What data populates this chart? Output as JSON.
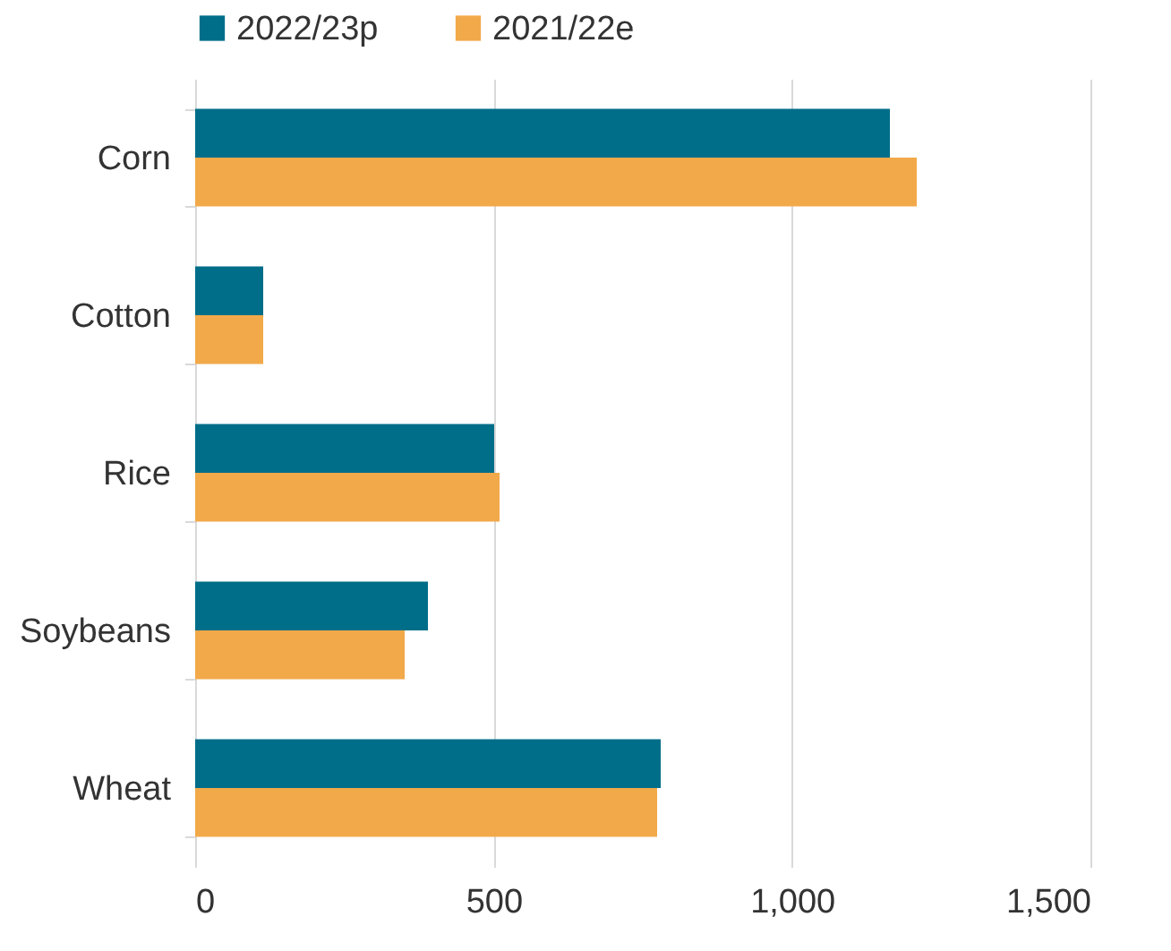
{
  "chart_data": {
    "type": "bar",
    "orientation": "horizontal",
    "categories": [
      "Corn",
      "Cotton",
      "Rice",
      "Soybeans",
      "Wheat"
    ],
    "series": [
      {
        "name": "2022/23p",
        "color": "#006e89",
        "values": [
          1164,
          114,
          501,
          390,
          780
        ]
      },
      {
        "name": "2021/22e",
        "color": "#f2a94a",
        "values": [
          1209,
          114,
          510,
          351,
          774
        ]
      }
    ],
    "xlim": [
      0,
      1500
    ],
    "xticks": [
      0,
      {
        "value": 500,
        "label": "500"
      },
      {
        "value": 1000,
        "label": "1,000"
      },
      {
        "value": 1500,
        "label": "1,500"
      }
    ],
    "grid": "x",
    "legend": "top"
  }
}
